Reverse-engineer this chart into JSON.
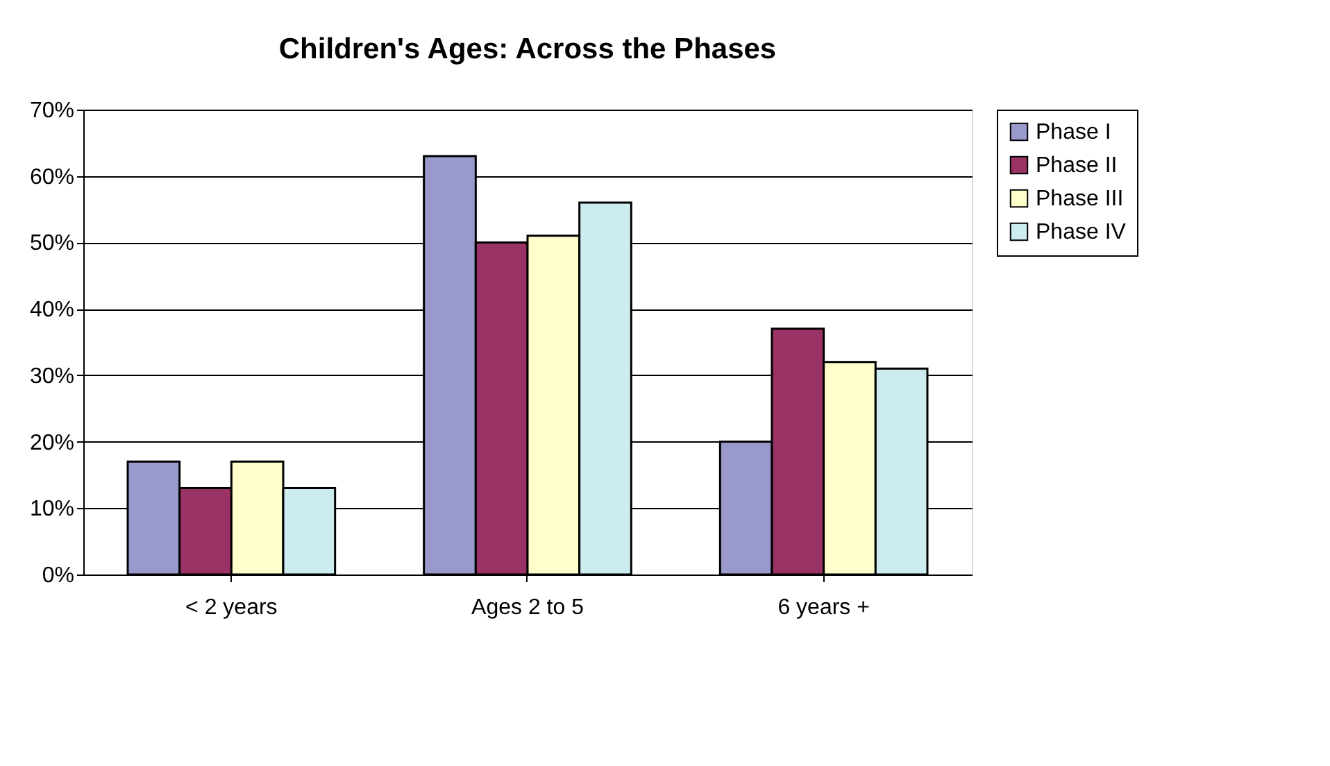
{
  "chart_data": {
    "type": "bar",
    "title": "Children's Ages: Across the Phases",
    "categories": [
      "< 2 years",
      "Ages 2 to 5",
      "6 years +"
    ],
    "series": [
      {
        "name": "Phase I",
        "color": "#9999cc",
        "values": [
          17,
          63,
          20
        ]
      },
      {
        "name": "Phase II",
        "color": "#993366",
        "values": [
          13,
          50,
          37
        ]
      },
      {
        "name": "Phase III",
        "color": "#ffffcc",
        "values": [
          17,
          51,
          32
        ]
      },
      {
        "name": "Phase IV",
        "color": "#ccecf0",
        "values": [
          13,
          56,
          31
        ]
      }
    ],
    "ylim": [
      0,
      70
    ],
    "yticks": [
      {
        "value": 0,
        "label": "0%"
      },
      {
        "value": 10,
        "label": "10%"
      },
      {
        "value": 20,
        "label": "20%"
      },
      {
        "value": 30,
        "label": "30%"
      },
      {
        "value": 40,
        "label": "40%"
      },
      {
        "value": 50,
        "label": "50%"
      },
      {
        "value": 60,
        "label": "60%"
      },
      {
        "value": 70,
        "label": "70%"
      }
    ],
    "grid": "y",
    "legend": "right"
  }
}
